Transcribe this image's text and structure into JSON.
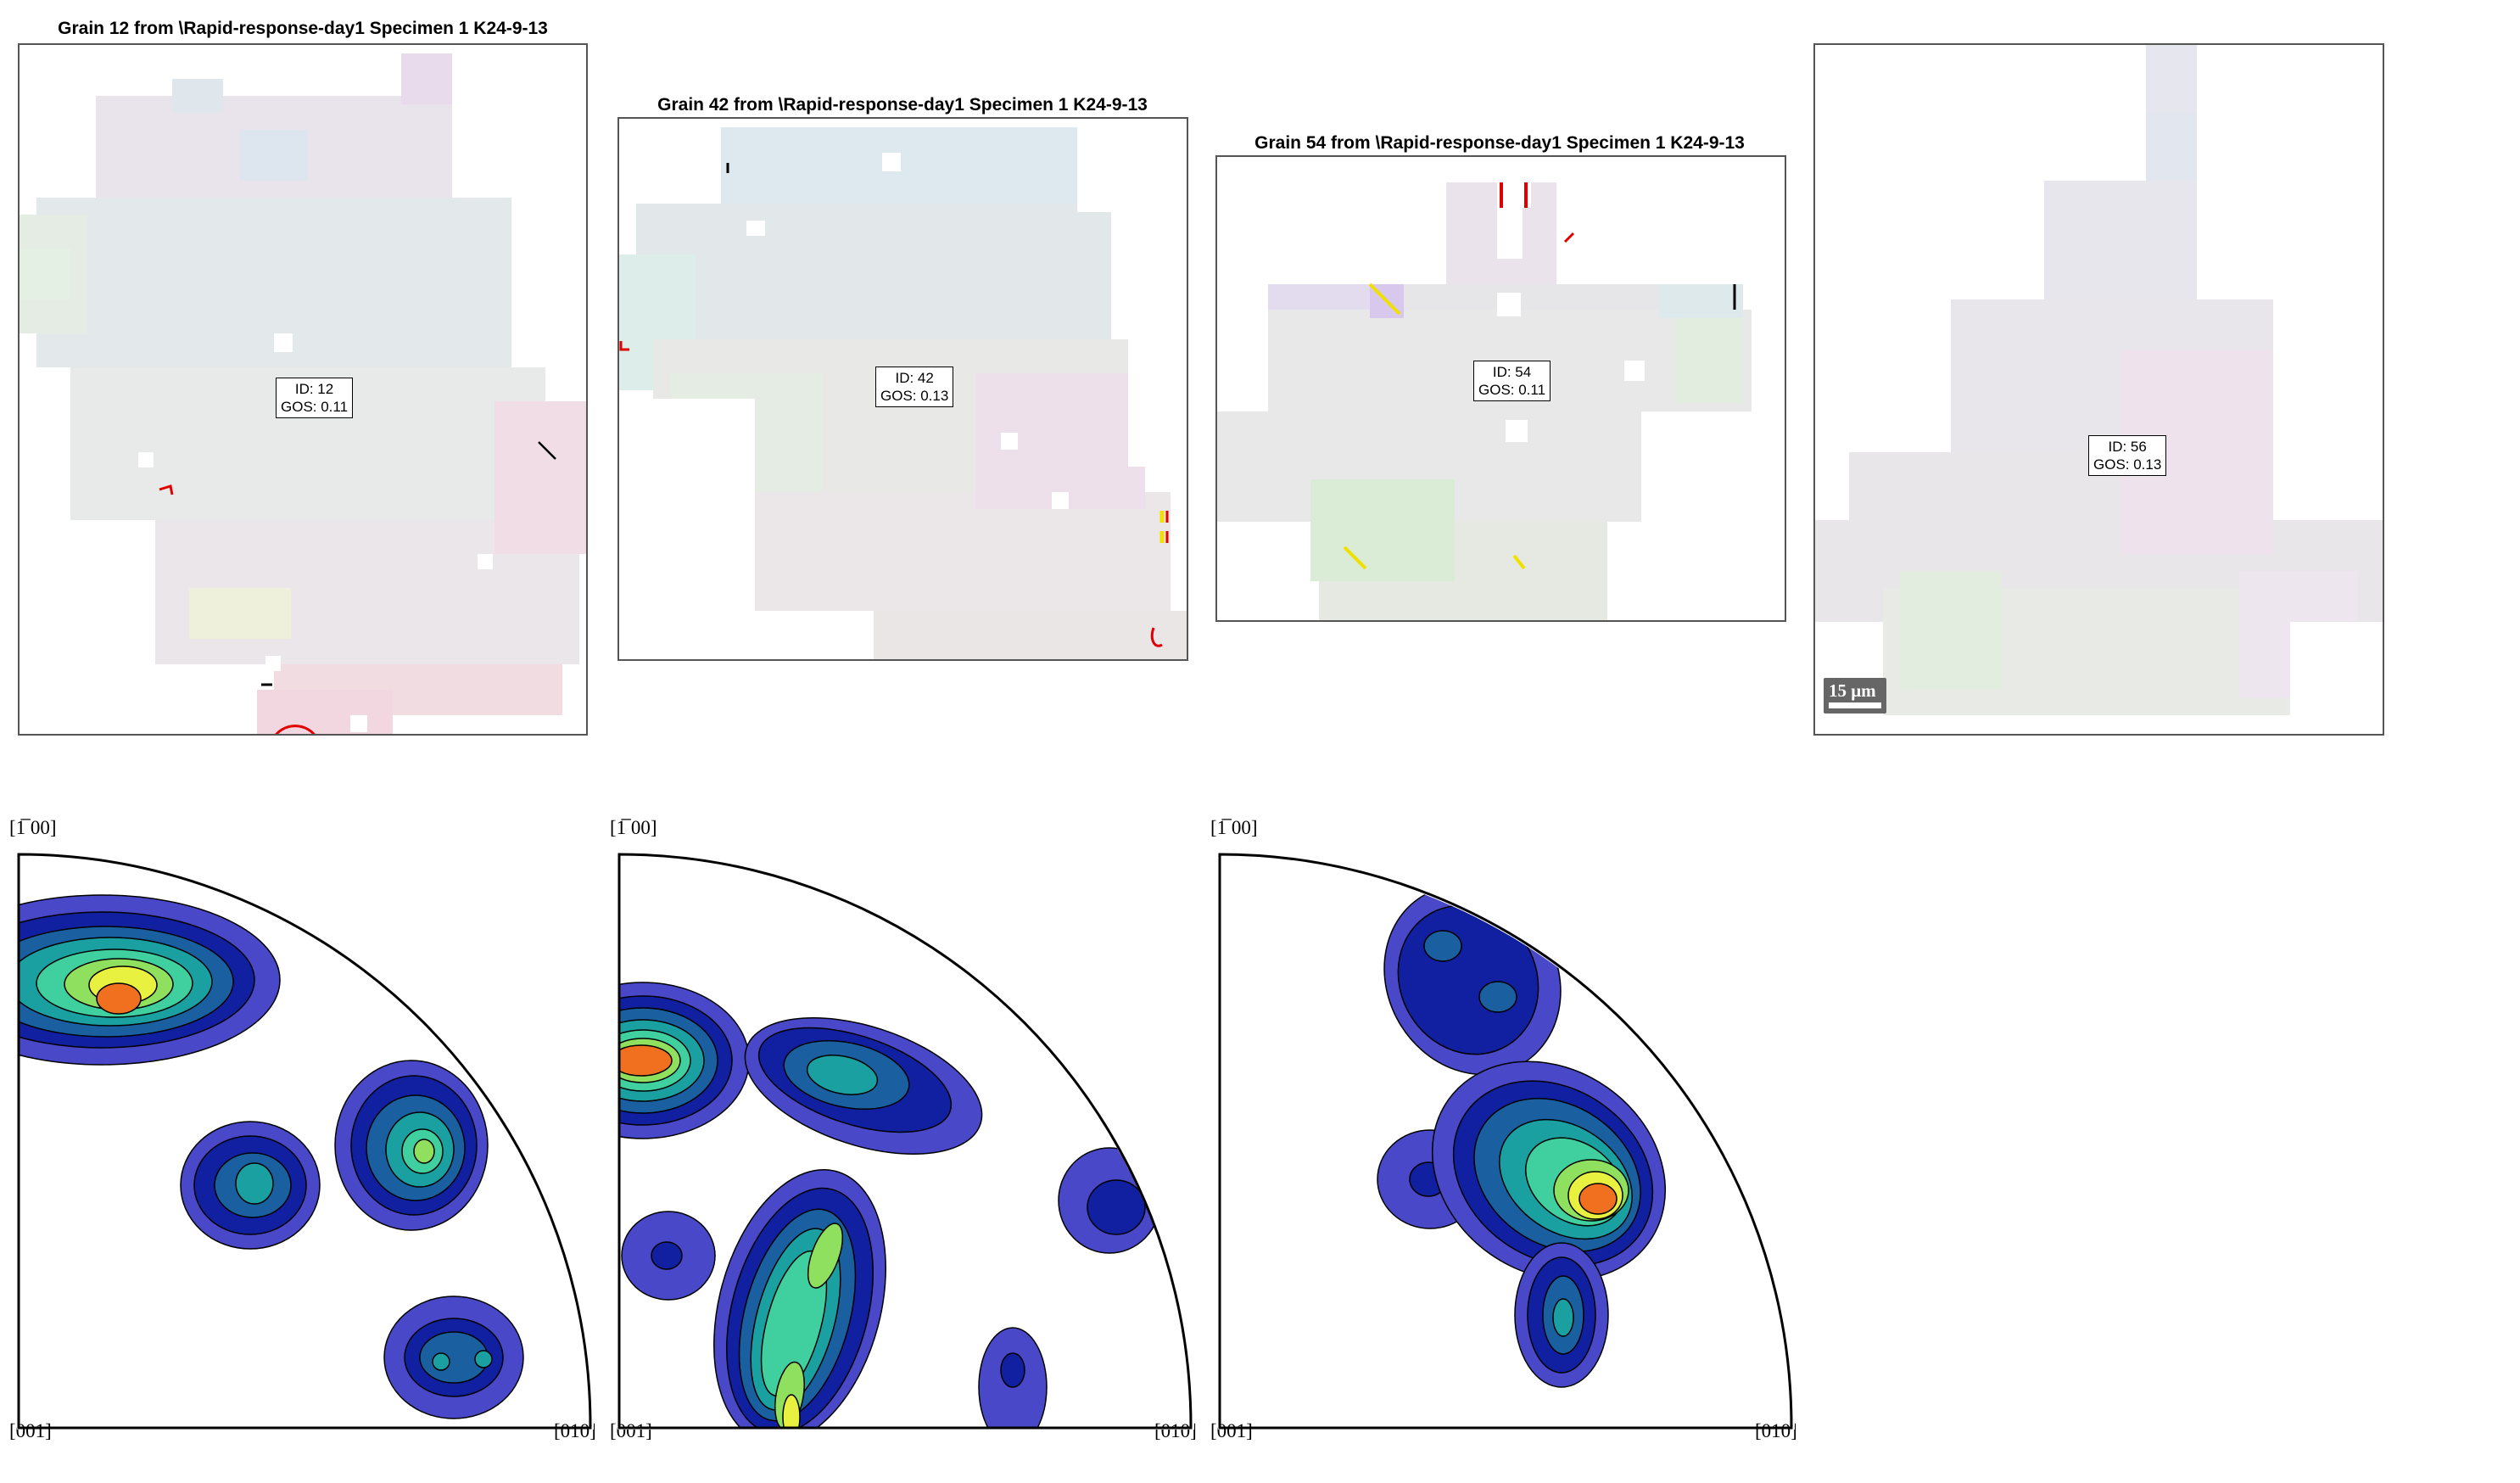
{
  "grains": [
    {
      "title": "Grain 12 from \\Rapid-response-day1 Specimen 1 K24-9-13",
      "id_label": "ID: 12",
      "gos_label": "GOS: 0.11"
    },
    {
      "title": "Grain 42 from \\Rapid-response-day1 Specimen 1 K24-9-13",
      "id_label": "ID: 42",
      "gos_label": "GOS: 0.13"
    },
    {
      "title": "Grain 54 from \\Rapid-response-day1 Specimen 1 K24-9-13",
      "id_label": "ID: 54",
      "gos_label": "GOS: 0.11"
    },
    {
      "title": "",
      "id_label": "ID: 56",
      "gos_label": "GOS: 0.13"
    }
  ],
  "scalebar": {
    "label": "15 μm"
  },
  "pole_figures": [
    {
      "top_label": "[1̅ 00]",
      "origin_label": "[001]",
      "right_label": "[010]"
    },
    {
      "top_label": "[1̅ 00]",
      "origin_label": "[001]",
      "right_label": "[010]"
    },
    {
      "top_label": "[1̅ 00]",
      "origin_label": "[001]",
      "right_label": "[010]"
    }
  ],
  "colors": {
    "frame": "#555555",
    "contour_levels": [
      "#4848c8",
      "#1020a0",
      "#1a5fa0",
      "#1aa0a0",
      "#40d0a0",
      "#90e060",
      "#e8f040",
      "#f07020"
    ],
    "boundary_red": "#e00000",
    "boundary_yellow": "#f0e000"
  }
}
